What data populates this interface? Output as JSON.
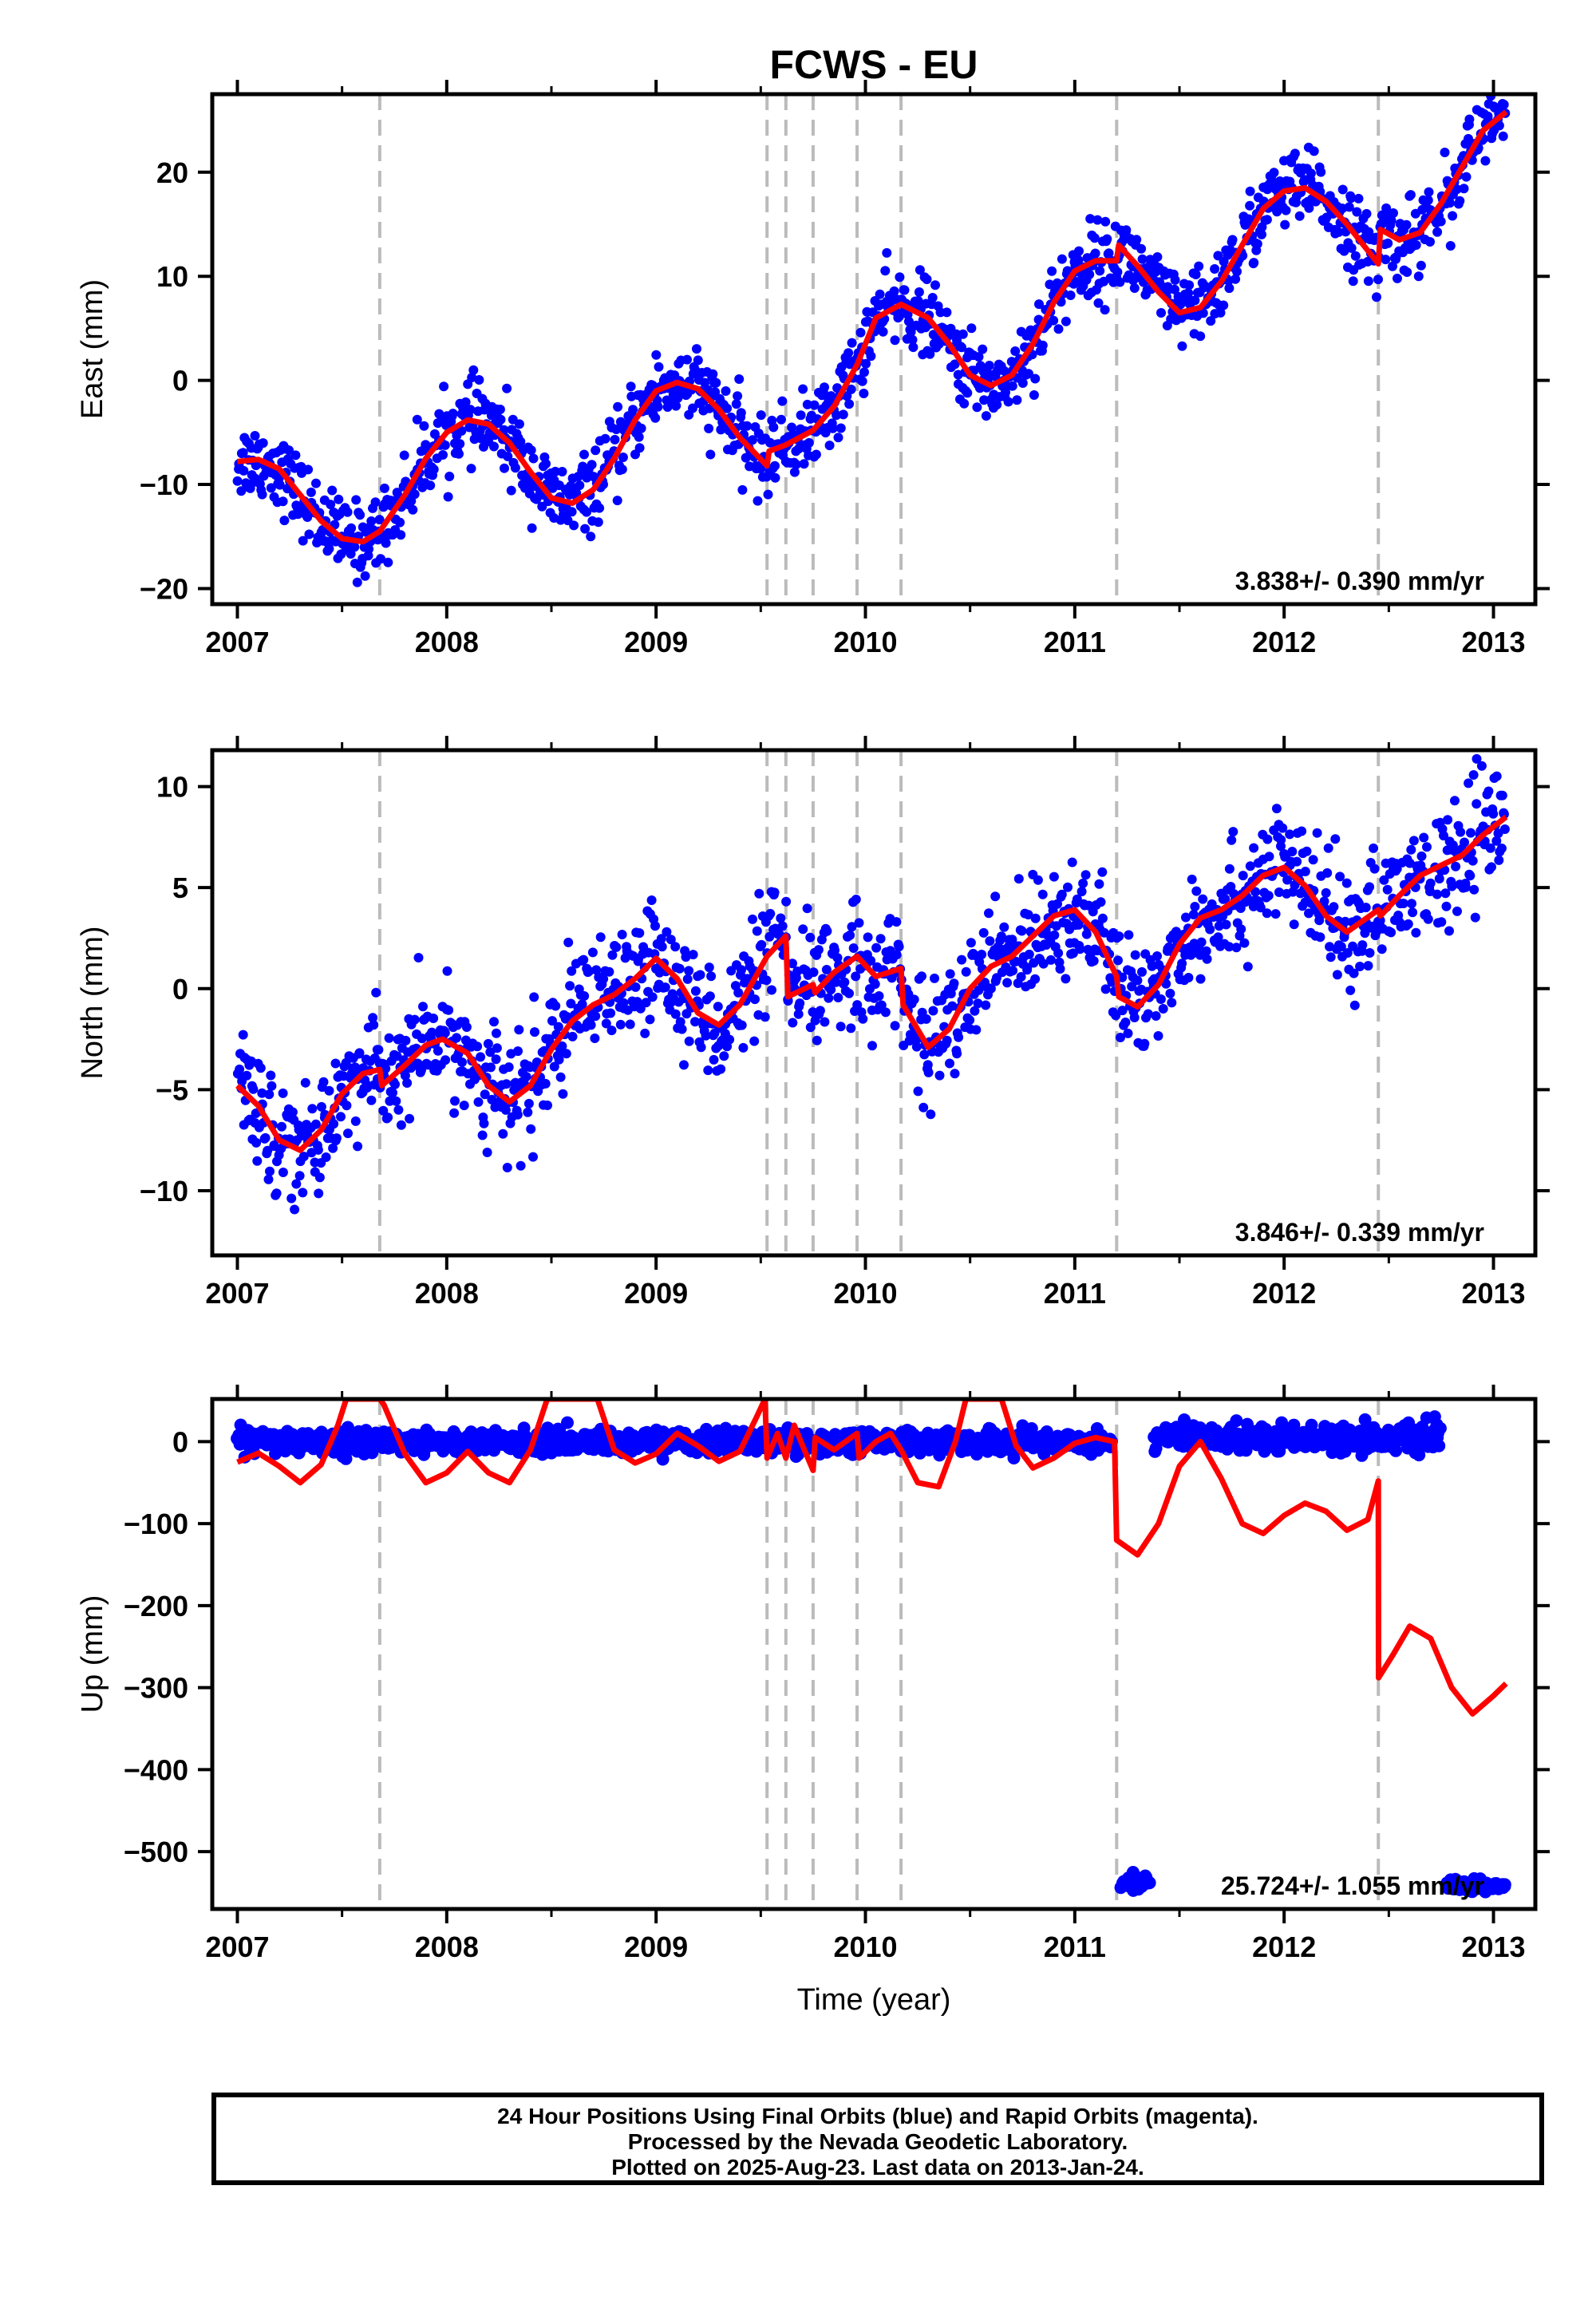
{
  "title": "FCWS - EU",
  "colors": {
    "data": "#0000ff",
    "model": "#ff0000",
    "offset_line": "#bbbbbb"
  },
  "xlabel": "Time (year)",
  "footer": {
    "line1": "24 Hour Positions Using Final Orbits (blue) and Rapid Orbits (magenta).",
    "line2": "Processed by the Nevada Geodetic Laboratory.",
    "line3": "Plotted on 2025-Aug-23. Last data on 2013-Jan-24."
  },
  "chart_data": [
    {
      "type": "scatter",
      "ylabel": "East (mm)",
      "xlim": [
        2006.88,
        2013.2
      ],
      "ylim": [
        -21.5,
        27.5
      ],
      "x_ticks": [
        2007,
        2008,
        2009,
        2010,
        2011,
        2012,
        2013
      ],
      "y_ticks": [
        -20,
        -10,
        0,
        10,
        20
      ],
      "rate": "3.838+/- 0.390 mm/yr",
      "offset_epochs": [
        2007.68,
        2009.53,
        2009.62,
        2009.75,
        2009.96,
        2010.17,
        2011.2,
        2012.45
      ],
      "model": [
        [
          2007.0,
          -7.8
        ],
        [
          2007.1,
          -7.6
        ],
        [
          2007.2,
          -8.5
        ],
        [
          2007.3,
          -11
        ],
        [
          2007.4,
          -13.5
        ],
        [
          2007.5,
          -15.2
        ],
        [
          2007.6,
          -15.5
        ],
        [
          2007.68,
          -14.5
        ],
        [
          2007.8,
          -11
        ],
        [
          2007.9,
          -7.5
        ],
        [
          2008.0,
          -5
        ],
        [
          2008.1,
          -3.8
        ],
        [
          2008.2,
          -4.2
        ],
        [
          2008.3,
          -6
        ],
        [
          2008.4,
          -8.8
        ],
        [
          2008.5,
          -11.3
        ],
        [
          2008.6,
          -11.8
        ],
        [
          2008.7,
          -10.5
        ],
        [
          2008.8,
          -7.5
        ],
        [
          2008.9,
          -3.8
        ],
        [
          2009.0,
          -1
        ],
        [
          2009.1,
          -0.2
        ],
        [
          2009.2,
          -0.8
        ],
        [
          2009.3,
          -2.8
        ],
        [
          2009.4,
          -5.5
        ],
        [
          2009.53,
          -8.2
        ],
        [
          2009.54,
          -6.8
        ],
        [
          2009.62,
          -6.2
        ],
        [
          2009.75,
          -4.8
        ],
        [
          2009.85,
          -2.5
        ],
        [
          2009.96,
          1.5
        ],
        [
          2010.05,
          6
        ],
        [
          2010.17,
          7.3
        ],
        [
          2010.3,
          6
        ],
        [
          2010.4,
          3.5
        ],
        [
          2010.5,
          0.5
        ],
        [
          2010.6,
          -0.5
        ],
        [
          2010.7,
          0.5
        ],
        [
          2010.8,
          3.5
        ],
        [
          2010.9,
          7.5
        ],
        [
          2011.0,
          10.5
        ],
        [
          2011.1,
          11.5
        ],
        [
          2011.2,
          11.5
        ],
        [
          2011.21,
          13
        ],
        [
          2011.3,
          11
        ],
        [
          2011.4,
          8.5
        ],
        [
          2011.5,
          6.5
        ],
        [
          2011.6,
          7
        ],
        [
          2011.7,
          9.5
        ],
        [
          2011.8,
          13
        ],
        [
          2011.9,
          16.5
        ],
        [
          2012.0,
          18.2
        ],
        [
          2012.1,
          18.5
        ],
        [
          2012.2,
          17.2
        ],
        [
          2012.3,
          15
        ],
        [
          2012.45,
          11.2
        ],
        [
          2012.46,
          14.5
        ],
        [
          2012.55,
          13.5
        ],
        [
          2012.65,
          14.2
        ],
        [
          2012.75,
          17
        ],
        [
          2012.85,
          20.5
        ],
        [
          2012.95,
          24
        ],
        [
          2013.06,
          25.8
        ]
      ],
      "data_sd": 1.8
    },
    {
      "type": "scatter",
      "ylabel": "North (mm)",
      "xlim": [
        2006.88,
        2013.2
      ],
      "ylim": [
        -13.2,
        11.8
      ],
      "x_ticks": [
        2007,
        2008,
        2009,
        2010,
        2011,
        2012,
        2013
      ],
      "y_ticks": [
        -10,
        -5,
        0,
        5,
        10
      ],
      "rate": "3.846+/- 0.339 mm/yr",
      "offset_epochs": [
        2007.68,
        2009.53,
        2009.62,
        2009.75,
        2009.96,
        2010.17,
        2011.2,
        2012.45
      ],
      "model": [
        [
          2007.0,
          -4.8
        ],
        [
          2007.1,
          -5.8
        ],
        [
          2007.2,
          -7.5
        ],
        [
          2007.3,
          -8
        ],
        [
          2007.4,
          -7
        ],
        [
          2007.5,
          -5.2
        ],
        [
          2007.6,
          -4.2
        ],
        [
          2007.68,
          -4
        ],
        [
          2007.69,
          -4.8
        ],
        [
          2007.8,
          -3.8
        ],
        [
          2007.9,
          -2.8
        ],
        [
          2007.98,
          -2.5
        ],
        [
          2008.1,
          -3.2
        ],
        [
          2008.2,
          -4.8
        ],
        [
          2008.3,
          -5.6
        ],
        [
          2008.4,
          -4.8
        ],
        [
          2008.5,
          -3
        ],
        [
          2008.6,
          -1.6
        ],
        [
          2008.7,
          -0.8
        ],
        [
          2008.8,
          -0.3
        ],
        [
          2008.9,
          0.5
        ],
        [
          2009.0,
          1.5
        ],
        [
          2009.1,
          0.5
        ],
        [
          2009.2,
          -1.2
        ],
        [
          2009.3,
          -1.8
        ],
        [
          2009.4,
          -0.8
        ],
        [
          2009.53,
          1.6
        ],
        [
          2009.62,
          2.6
        ],
        [
          2009.63,
          -0.4
        ],
        [
          2009.75,
          0.2
        ],
        [
          2009.76,
          -0.2
        ],
        [
          2009.85,
          0.8
        ],
        [
          2009.96,
          1.6
        ],
        [
          2010.05,
          0.6
        ],
        [
          2010.17,
          1
        ],
        [
          2010.18,
          -0.8
        ],
        [
          2010.3,
          -2.9
        ],
        [
          2010.4,
          -2
        ],
        [
          2010.5,
          0
        ],
        [
          2010.6,
          1.1
        ],
        [
          2010.7,
          1.6
        ],
        [
          2010.8,
          2.6
        ],
        [
          2010.9,
          3.6
        ],
        [
          2011.0,
          3.9
        ],
        [
          2011.1,
          2.8
        ],
        [
          2011.2,
          0.6
        ],
        [
          2011.21,
          -0.4
        ],
        [
          2011.3,
          -0.9
        ],
        [
          2011.4,
          0.2
        ],
        [
          2011.5,
          2.2
        ],
        [
          2011.6,
          3.5
        ],
        [
          2011.7,
          3.9
        ],
        [
          2011.8,
          4.6
        ],
        [
          2011.9,
          5.6
        ],
        [
          2012.0,
          6
        ],
        [
          2012.1,
          5.1
        ],
        [
          2012.2,
          3.6
        ],
        [
          2012.3,
          2.8
        ],
        [
          2012.45,
          3.9
        ],
        [
          2012.46,
          3.6
        ],
        [
          2012.55,
          4.6
        ],
        [
          2012.65,
          5.6
        ],
        [
          2012.75,
          6.1
        ],
        [
          2012.85,
          6.6
        ],
        [
          2012.95,
          7.6
        ],
        [
          2013.06,
          8.5
        ]
      ],
      "data_sd": 1.4
    },
    {
      "type": "scatter",
      "ylabel": "Up (mm)",
      "xlim": [
        2006.88,
        2013.2
      ],
      "ylim": [
        -570,
        52
      ],
      "x_ticks": [
        2007,
        2008,
        2009,
        2010,
        2011,
        2012,
        2013
      ],
      "y_ticks": [
        -500,
        -400,
        -300,
        -200,
        -100,
        0
      ],
      "rate": "25.724+/- 1.055 mm/yr",
      "offset_epochs": [
        2007.68,
        2009.53,
        2009.62,
        2009.75,
        2009.96,
        2010.17,
        2011.2,
        2012.45
      ],
      "model": [
        [
          2007.0,
          -25
        ],
        [
          2007.1,
          -14
        ],
        [
          2007.2,
          -30
        ],
        [
          2007.3,
          -50
        ],
        [
          2007.4,
          -28
        ],
        [
          2007.48,
          20
        ],
        [
          2007.52,
          52
        ],
        [
          2007.68,
          52
        ],
        [
          2007.7,
          45
        ],
        [
          2007.8,
          -15
        ],
        [
          2007.9,
          -50
        ],
        [
          2008.0,
          -38
        ],
        [
          2008.1,
          -12
        ],
        [
          2008.2,
          -38
        ],
        [
          2008.3,
          -50
        ],
        [
          2008.4,
          -10
        ],
        [
          2008.48,
          52
        ],
        [
          2008.72,
          52
        ],
        [
          2008.8,
          -10
        ],
        [
          2008.9,
          -26
        ],
        [
          2009.0,
          -15
        ],
        [
          2009.1,
          10
        ],
        [
          2009.2,
          -5
        ],
        [
          2009.3,
          -24
        ],
        [
          2009.4,
          -12
        ],
        [
          2009.48,
          30
        ],
        [
          2009.52,
          52
        ],
        [
          2009.53,
          -20
        ],
        [
          2009.58,
          10
        ],
        [
          2009.62,
          -20
        ],
        [
          2009.66,
          20
        ],
        [
          2009.7,
          -5
        ],
        [
          2009.75,
          -35
        ],
        [
          2009.76,
          5
        ],
        [
          2009.85,
          -10
        ],
        [
          2009.96,
          10
        ],
        [
          2009.97,
          -20
        ],
        [
          2010.05,
          0
        ],
        [
          2010.12,
          10
        ],
        [
          2010.17,
          -10
        ],
        [
          2010.25,
          -50
        ],
        [
          2010.35,
          -55
        ],
        [
          2010.43,
          0
        ],
        [
          2010.48,
          52
        ],
        [
          2010.65,
          52
        ],
        [
          2010.72,
          -5
        ],
        [
          2010.8,
          -32
        ],
        [
          2010.9,
          -20
        ],
        [
          2011.0,
          -2
        ],
        [
          2011.1,
          5
        ],
        [
          2011.19,
          0
        ],
        [
          2011.2,
          -120
        ],
        [
          2011.3,
          -138
        ],
        [
          2011.4,
          -100
        ],
        [
          2011.5,
          -30
        ],
        [
          2011.6,
          0
        ],
        [
          2011.7,
          -45
        ],
        [
          2011.8,
          -100
        ],
        [
          2011.9,
          -112
        ],
        [
          2012.0,
          -90
        ],
        [
          2012.1,
          -75
        ],
        [
          2012.2,
          -85
        ],
        [
          2012.3,
          -108
        ],
        [
          2012.4,
          -95
        ],
        [
          2012.45,
          -48
        ],
        [
          2012.451,
          -288
        ],
        [
          2012.52,
          -260
        ],
        [
          2012.6,
          -225
        ],
        [
          2012.7,
          -240
        ],
        [
          2012.8,
          -300
        ],
        [
          2012.9,
          -332
        ],
        [
          2013.0,
          -310
        ],
        [
          2013.06,
          -295
        ]
      ],
      "clusters": [
        {
          "x": [
            2007.0,
            2011.18
          ],
          "y": 0,
          "sd": 7
        },
        {
          "x": [
            2011.38,
            2012.75
          ],
          "y": 5,
          "sd": 8
        },
        {
          "x": [
            2011.22,
            2011.36
          ],
          "y": -537,
          "sd": 5
        },
        {
          "x": [
            2012.78,
            2013.06
          ],
          "y": -542,
          "sd": 4
        }
      ]
    }
  ]
}
